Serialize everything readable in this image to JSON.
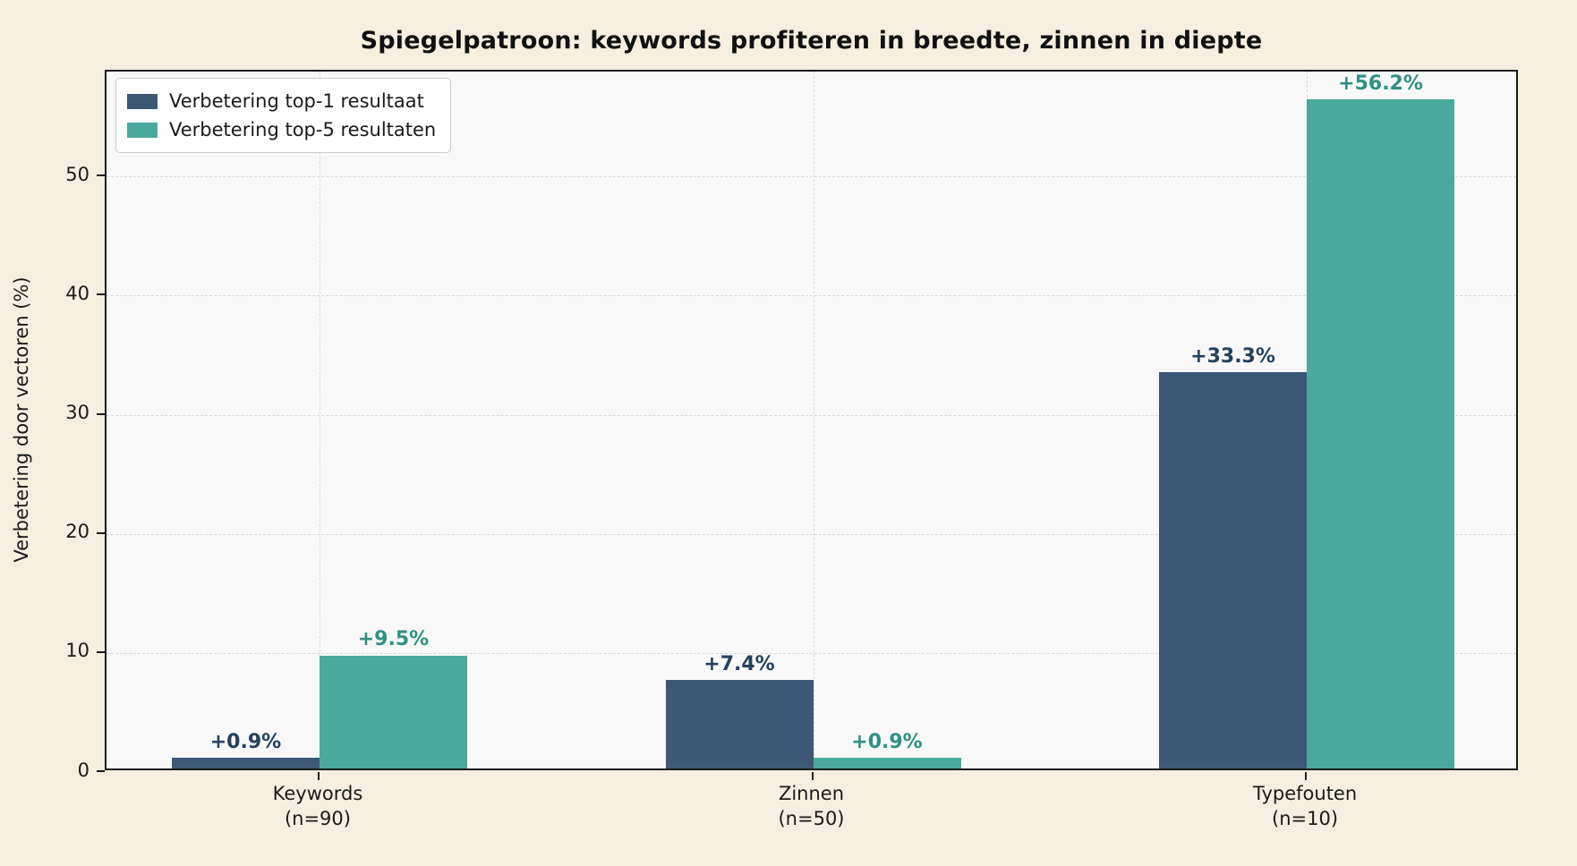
{
  "chart_data": {
    "type": "bar",
    "title": "Spiegelpatroon: keywords profiteren in breedte, zinnen in diepte",
    "xlabel": "",
    "ylabel": "Verbetering door vectoren (%)",
    "categories": [
      "Keywords\n(n=90)",
      "Zinnen\n(n=50)",
      "Typefouten\n(n=10)"
    ],
    "series": [
      {
        "name": "Verbetering top-1 resultaat",
        "color": "#3d5875",
        "label_color": "#24415e",
        "values": [
          0.9,
          7.4,
          33.3
        ],
        "value_labels": [
          "+0.9%",
          "+7.4%",
          "+33.3%"
        ]
      },
      {
        "name": "Verbetering top-5 resultaten",
        "color": "#4aa99c",
        "label_color": "#2e9184",
        "values": [
          9.5,
          0.9,
          56.2
        ],
        "value_labels": [
          "+9.5%",
          "+0.9%",
          "+56.2%"
        ]
      }
    ],
    "yticks": [
      0,
      10,
      20,
      30,
      40,
      50
    ],
    "ylim": [
      0,
      58.8
    ],
    "grid": true,
    "legend_position": "upper-left",
    "colors": {
      "figure_bg": "#f6efe0",
      "plot_bg": "#f8f8f8",
      "spine": "#1a1a1a",
      "grid": "#d8d8d8",
      "tick_text": "#1a1a1a"
    }
  }
}
